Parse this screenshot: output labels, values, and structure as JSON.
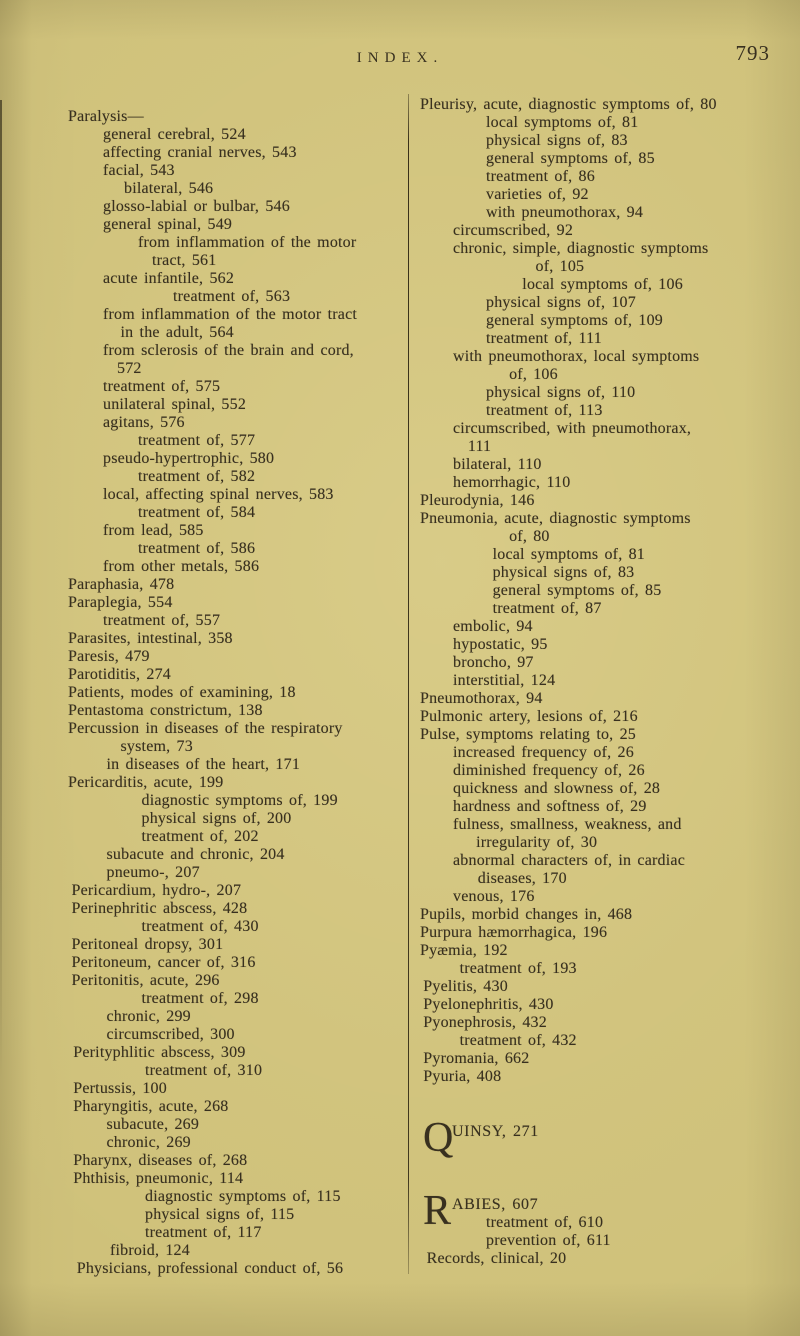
{
  "header": {
    "title": "INDEX.",
    "page_number": "793"
  },
  "colors": {
    "paper": "#cfc17a",
    "ink": "#38301f",
    "rule": "#4a4030"
  },
  "index": {
    "left_column": {
      "lines": [
        {
          "t": "Paralysis—",
          "i": 0
        },
        {
          "t": "general cerebral, 524",
          "i": 1
        },
        {
          "t": "affecting cranial nerves, 543",
          "i": 1
        },
        {
          "t": "facial, 543",
          "i": 1
        },
        {
          "t": "bilateral, 546",
          "i": 1.6
        },
        {
          "t": "glosso-labial or bulbar, 546",
          "i": 1
        },
        {
          "t": "general spinal, 549",
          "i": 1
        },
        {
          "t": "from inflammation of the motor",
          "i": 2
        },
        {
          "t": "tract, 561",
          "i": 2.4
        },
        {
          "t": "acute infantile, 562",
          "i": 1
        },
        {
          "t": "treatment of, 563",
          "i": 3
        },
        {
          "t": "from inflammation of the motor tract",
          "i": 1
        },
        {
          "t": "in the adult, 564",
          "i": 1.5
        },
        {
          "t": "from sclerosis of the brain and cord,",
          "i": 1
        },
        {
          "t": "572",
          "i": 1.4
        },
        {
          "t": "treatment of, 575",
          "i": 1
        },
        {
          "t": "unilateral spinal, 552",
          "i": 1
        },
        {
          "t": "agitans, 576",
          "i": 1
        },
        {
          "t": "treatment of, 577",
          "i": 2
        },
        {
          "t": "pseudo-hypertrophic, 580",
          "i": 1
        },
        {
          "t": "treatment of, 582",
          "i": 2
        },
        {
          "t": "local, affecting spinal nerves, 583",
          "i": 1
        },
        {
          "t": "treatment of, 584",
          "i": 2
        },
        {
          "t": "from lead, 585",
          "i": 1
        },
        {
          "t": "treatment of, 586",
          "i": 2
        },
        {
          "t": "from other metals, 586",
          "i": 1
        },
        {
          "t": "Paraphasia, 478",
          "i": 0
        },
        {
          "t": "Paraplegia, 554",
          "i": 0
        },
        {
          "t": "treatment of, 557",
          "i": 1
        },
        {
          "t": "Parasites, intestinal, 358",
          "i": 0
        },
        {
          "t": "Paresis, 479",
          "i": 0
        },
        {
          "t": "Parotiditis, 274",
          "i": 0
        },
        {
          "t": "Patients, modes of examining, 18",
          "i": 0
        },
        {
          "t": "Pentastoma constrictum, 138",
          "i": 0
        },
        {
          "t": "Percussion in diseases of the respiratory",
          "i": 0
        },
        {
          "t": "system, 73",
          "i": 1.5
        },
        {
          "t": "in diseases of the heart, 171",
          "i": 1.1
        },
        {
          "t": "Pericarditis, acute, 199",
          "i": 0
        },
        {
          "t": "diagnostic symptoms of, 199",
          "i": 2.1
        },
        {
          "t": "physical signs of, 200",
          "i": 2.1
        },
        {
          "t": "treatment of, 202",
          "i": 2.1
        },
        {
          "t": "subacute and chronic, 204",
          "i": 1.1
        },
        {
          "t": "pneumo-, 207",
          "i": 1.1
        },
        {
          "t": "Pericardium, hydro-, 207",
          "i": 0.1
        },
        {
          "t": "Perinephritic abscess, 428",
          "i": 0.1
        },
        {
          "t": "treatment of, 430",
          "i": 2.1
        },
        {
          "t": "Peritoneal dropsy, 301",
          "i": 0.1
        },
        {
          "t": "Peritoneum, cancer of, 316",
          "i": 0.1
        },
        {
          "t": "Peritonitis, acute, 296",
          "i": 0.1
        },
        {
          "t": "treatment of, 298",
          "i": 2.1
        },
        {
          "t": "chronic, 299",
          "i": 1.1
        },
        {
          "t": "circumscribed, 300",
          "i": 1.1
        },
        {
          "t": "Perityphlitic abscess, 309",
          "i": 0.15
        },
        {
          "t": "treatment of, 310",
          "i": 2.2
        },
        {
          "t": "Pertussis, 100",
          "i": 0.15
        },
        {
          "t": "Pharyngitis, acute, 268",
          "i": 0.15
        },
        {
          "t": "subacute, 269",
          "i": 1.1
        },
        {
          "t": "chronic, 269",
          "i": 1.1
        },
        {
          "t": "Pharynx, diseases of, 268",
          "i": 0.15
        },
        {
          "t": "Phthisis, pneumonic, 114",
          "i": 0.15
        },
        {
          "t": "diagnostic symptoms of, 115",
          "i": 2.2
        },
        {
          "t": "physical signs of, 115",
          "i": 2.2
        },
        {
          "t": "treatment of, 117",
          "i": 2.2
        },
        {
          "t": "fibroid, 124",
          "i": 1.2
        },
        {
          "t": "Physicians, professional conduct of, 56",
          "i": 0.25
        }
      ]
    },
    "right_column": {
      "lines": [
        {
          "t": "Pleurisy, acute, diagnostic symptoms of, 80",
          "i": 0
        },
        {
          "t": "local symptoms of, 81",
          "i": 2
        },
        {
          "t": "physical signs of, 83",
          "i": 2
        },
        {
          "t": "general symptoms of, 85",
          "i": 2
        },
        {
          "t": "treatment of, 86",
          "i": 2
        },
        {
          "t": "varieties of, 92",
          "i": 2
        },
        {
          "t": "with pneumothorax, 94",
          "i": 2
        },
        {
          "t": "circumscribed, 92",
          "i": 1
        },
        {
          "t": "chronic, simple, diagnostic symptoms",
          "i": 1
        },
        {
          "t": "of, 105",
          "i": 3.5
        },
        {
          "t": "local symptoms of, 106",
          "i": 3.1
        },
        {
          "t": "physical signs of, 107",
          "i": 2
        },
        {
          "t": "general symptoms of, 109",
          "i": 2
        },
        {
          "t": "treatment of, 111",
          "i": 2
        },
        {
          "t": "with pneumothorax, local symptoms",
          "i": 1
        },
        {
          "t": "of, 106",
          "i": 2.7
        },
        {
          "t": "physical signs of, 110",
          "i": 2
        },
        {
          "t": "treatment of, 113",
          "i": 2
        },
        {
          "t": "circumscribed, with pneumothorax,",
          "i": 1
        },
        {
          "t": "111",
          "i": 1.45
        },
        {
          "t": "bilateral, 110",
          "i": 1
        },
        {
          "t": "hemorrhagic, 110",
          "i": 1
        },
        {
          "t": "Pleurodynia, 146",
          "i": 0
        },
        {
          "t": "Pneumonia, acute, diagnostic symptoms",
          "i": 0
        },
        {
          "t": "of, 80",
          "i": 2.7
        },
        {
          "t": "local symptoms of, 81",
          "i": 2.2
        },
        {
          "t": "physical signs of, 83",
          "i": 2.2
        },
        {
          "t": "general symptoms of, 85",
          "i": 2.2
        },
        {
          "t": "treatment of, 87",
          "i": 2.2
        },
        {
          "t": "embolic, 94",
          "i": 1
        },
        {
          "t": "hypostatic, 95",
          "i": 1
        },
        {
          "t": "broncho, 97",
          "i": 1
        },
        {
          "t": "interstitial, 124",
          "i": 1
        },
        {
          "t": "Pneumothorax, 94",
          "i": 0
        },
        {
          "t": "Pulmonic artery, lesions of, 216",
          "i": 0
        },
        {
          "t": "Pulse, symptoms relating to, 25",
          "i": 0
        },
        {
          "t": "increased frequency of, 26",
          "i": 1
        },
        {
          "t": "diminished frequency of, 26",
          "i": 1
        },
        {
          "t": "quickness and slowness of, 28",
          "i": 1
        },
        {
          "t": "hardness and softness of, 29",
          "i": 1
        },
        {
          "t": "fulness, smallness, weakness, and",
          "i": 1
        },
        {
          "t": "irregularity of, 30",
          "i": 1.7
        },
        {
          "t": "abnormal characters of, in cardiac",
          "i": 1
        },
        {
          "t": "diseases, 170",
          "i": 1.75
        },
        {
          "t": "venous, 176",
          "i": 1
        },
        {
          "t": "Pupils, morbid changes in, 468",
          "i": 0
        },
        {
          "t": "Purpura hæmorrhagica, 196",
          "i": 0
        },
        {
          "t": "Pyæmia, 192",
          "i": 0
        },
        {
          "t": "treatment of, 193",
          "i": 1.2
        },
        {
          "t": "Pyelitis, 430",
          "i": 0.1
        },
        {
          "t": "Pyelonephritis, 430",
          "i": 0.1
        },
        {
          "t": "Pyonephrosis, 432",
          "i": 0.1
        },
        {
          "t": "treatment of, 432",
          "i": 1.2
        },
        {
          "t": "Pyromania, 662",
          "i": 0.1
        },
        {
          "t": "Pyuria, 408",
          "i": 0.1
        },
        {
          "t": "UINSY, 271",
          "i": 0,
          "dropcap": "Q",
          "gap": 37
        },
        {
          "t": "ABIES, 607",
          "i": 0,
          "dropcap": "R",
          "gap": 55
        },
        {
          "t": "treatment of, 610",
          "i": 2
        },
        {
          "t": "prevention of, 611",
          "i": 2
        },
        {
          "t": "Records, clinical, 20",
          "i": 0.2
        }
      ]
    }
  }
}
